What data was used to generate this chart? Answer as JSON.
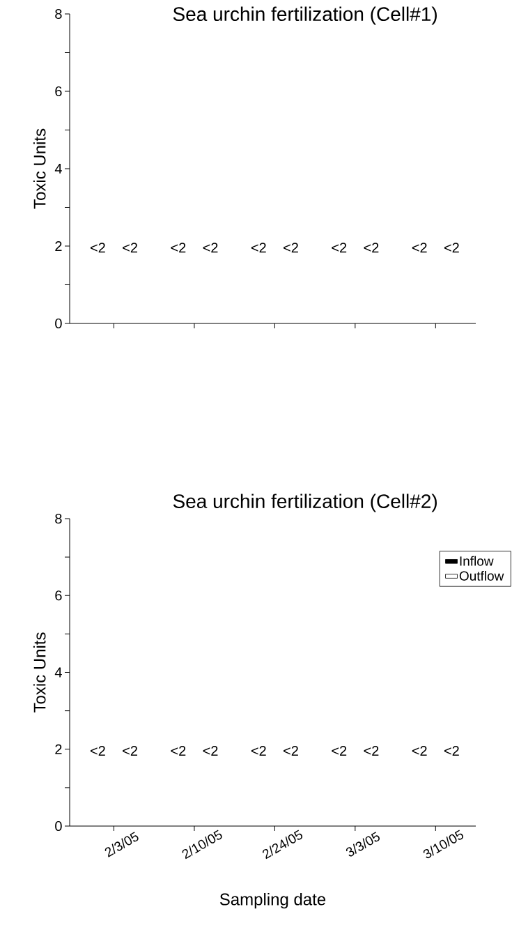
{
  "chart_data": [
    {
      "type": "bar",
      "title": "Sea urchin fertilization (Cell#1)",
      "ylabel": "Toxic Units",
      "categories": [
        null,
        null,
        null,
        null,
        null
      ],
      "series": [
        {
          "color": "#000000",
          "values": [
            null,
            null,
            null,
            null,
            null
          ]
        },
        {
          "color": "#ffffff",
          "values": [
            null,
            null,
            null,
            null,
            null
          ]
        }
      ],
      "ylim": [
        0,
        8
      ],
      "yticks": [
        0,
        {
          "value": 1,
          "label": null
        },
        2,
        {
          "value": 3,
          "label": null
        },
        4,
        {
          "value": 5,
          "label": null
        },
        6,
        {
          "value": 7,
          "label": null
        },
        8
      ],
      "tick_labels": "y",
      "annotations": [
        "<2",
        "<2",
        "<2",
        "<2",
        "<2",
        "<2",
        "<2",
        "<2",
        "<2",
        "<2"
      ]
    },
    {
      "type": "bar",
      "title": "Sea urchin fertilization (Cell#2)",
      "ylabel": "Toxic Units",
      "xlabel": "Sampling date",
      "categories": [
        "2/3/05",
        "2/10/05",
        "2/24/05",
        "3/3/05",
        "3/10/05"
      ],
      "series": [
        {
          "name": "Inflow",
          "color": "#000000",
          "values": [
            null,
            null,
            null,
            null,
            null
          ]
        },
        {
          "name": "Outflow",
          "color": "#ffffff",
          "values": [
            null,
            null,
            null,
            null,
            null
          ]
        }
      ],
      "ylim": [
        0,
        8
      ],
      "yticks": [
        0,
        {
          "value": 1,
          "label": null
        },
        2,
        {
          "value": 3,
          "label": null
        },
        4,
        {
          "value": 5,
          "label": null
        },
        6,
        {
          "value": 7,
          "label": null
        },
        8
      ],
      "legend": "top right",
      "annotations": [
        "<2",
        "<2",
        "<2",
        "<2",
        "<2",
        "<2",
        "<2",
        "<2",
        "<2",
        "<2"
      ]
    }
  ]
}
